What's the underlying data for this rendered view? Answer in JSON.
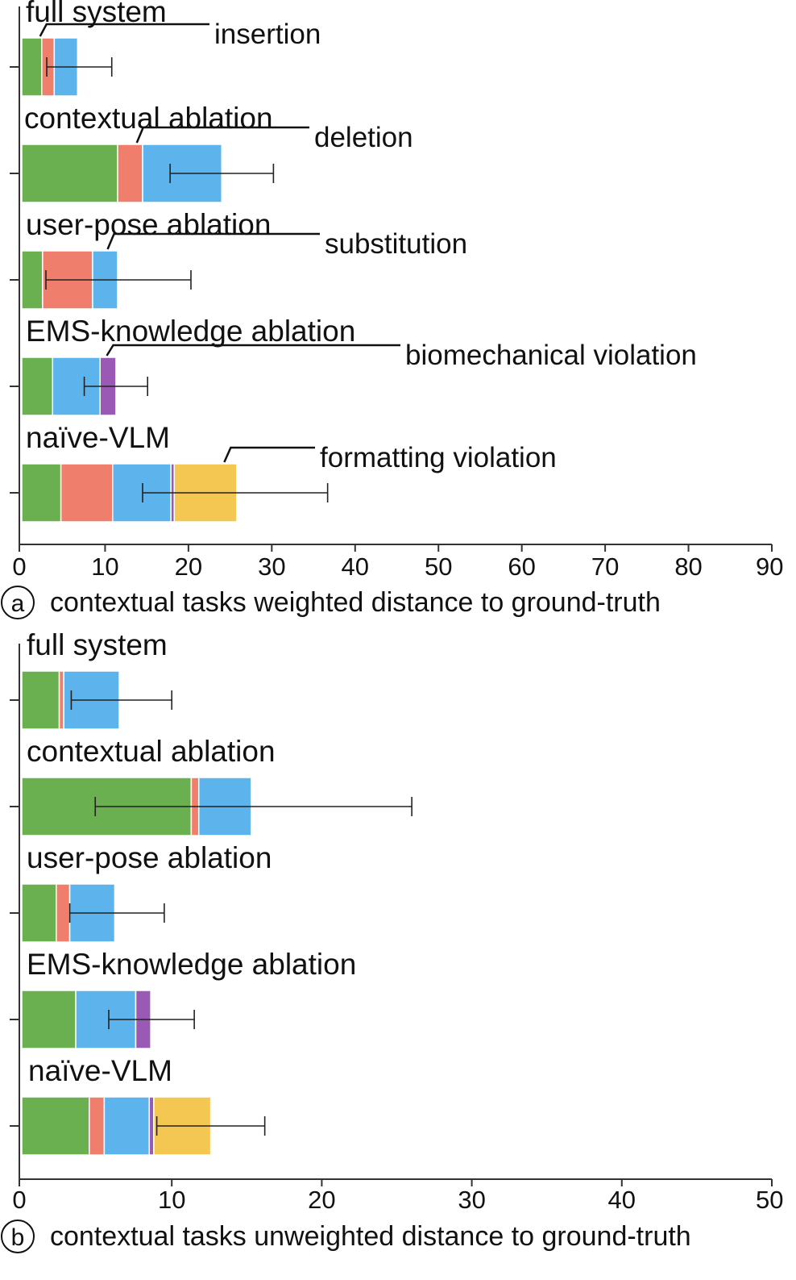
{
  "legend": [
    {
      "key": "insertion",
      "label": "insertion",
      "color": "#6aaf50"
    },
    {
      "key": "deletion",
      "label": "deletion",
      "color": "#ef7f6c"
    },
    {
      "key": "substitution",
      "label": "substitution",
      "color": "#5db4ec"
    },
    {
      "key": "biomechanical",
      "label": "biomechanical violation",
      "color": "#9b59b6"
    },
    {
      "key": "formatting",
      "label": "formatting violation",
      "color": "#f4c752"
    }
  ],
  "chart_data": [
    {
      "type": "bar",
      "orientation": "horizontal",
      "stacked": true,
      "panel_letter": "a",
      "caption": "contextual tasks weighted distance to ground-truth",
      "categories": [
        "full system",
        "contextual ablation",
        "user-pose ablation",
        "EMS-knowledge ablation",
        "naïve-VLM"
      ],
      "xlim": [
        0,
        90
      ],
      "xticks": [
        "0",
        "10",
        "20",
        "30",
        "40",
        "50",
        "60",
        "70",
        "80",
        "90"
      ],
      "series": [
        {
          "name": "insertion",
          "values": [
            2.4,
            11.5,
            2.5,
            3.7,
            4.7
          ]
        },
        {
          "name": "deletion",
          "values": [
            1.5,
            3.0,
            6.0,
            0,
            6.2
          ]
        },
        {
          "name": "substitution",
          "values": [
            2.8,
            9.5,
            3.0,
            5.7,
            7.0
          ]
        },
        {
          "name": "biomechanical violation",
          "values": [
            0,
            0,
            0,
            1.9,
            0.4
          ]
        },
        {
          "name": "formatting violation",
          "values": [
            0,
            0,
            0,
            0,
            7.5
          ]
        }
      ],
      "error_bars": [
        [
          3.0,
          10.8
        ],
        [
          17.8,
          30.2
        ],
        [
          2.9,
          20.3
        ],
        [
          7.5,
          15.1
        ],
        [
          14.5,
          36.7
        ]
      ],
      "legend_annotations": [
        {
          "category_index": 0,
          "series_index": 0,
          "at": 2.2
        },
        {
          "category_index": 1,
          "series_index": 1,
          "at": 13.8
        },
        {
          "category_index": 2,
          "series_index": 2,
          "at": 10.3
        },
        {
          "category_index": 3,
          "series_index": 3,
          "at": 10.2
        },
        {
          "category_index": 4,
          "series_index": 4,
          "at": 24.3
        }
      ]
    },
    {
      "type": "bar",
      "orientation": "horizontal",
      "stacked": true,
      "panel_letter": "b",
      "caption": "contextual tasks unweighted distance to ground-truth",
      "categories": [
        "full system",
        "contextual ablation",
        "user-pose ablation",
        "EMS-knowledge ablation",
        "naïve-VLM"
      ],
      "xlim": [
        0,
        50
      ],
      "xticks": [
        "0",
        "10",
        "20",
        "30",
        "40",
        "50"
      ],
      "series": [
        {
          "name": "insertion",
          "values": [
            2.5,
            11.3,
            2.3,
            3.6,
            4.5
          ]
        },
        {
          "name": "deletion",
          "values": [
            0.3,
            0.5,
            0.9,
            0,
            1.0
          ]
        },
        {
          "name": "substitution",
          "values": [
            3.7,
            3.5,
            3.0,
            4.0,
            3.0
          ]
        },
        {
          "name": "biomechanical violation",
          "values": [
            0,
            0,
            0,
            1.0,
            0.3
          ]
        },
        {
          "name": "formatting violation",
          "values": [
            0,
            0,
            0,
            0,
            3.8
          ]
        }
      ],
      "error_bars": [
        [
          3.3,
          10.0
        ],
        [
          4.9,
          26.0
        ],
        [
          3.2,
          9.5
        ],
        [
          5.8,
          11.5
        ],
        [
          9.0,
          16.2
        ]
      ]
    }
  ]
}
